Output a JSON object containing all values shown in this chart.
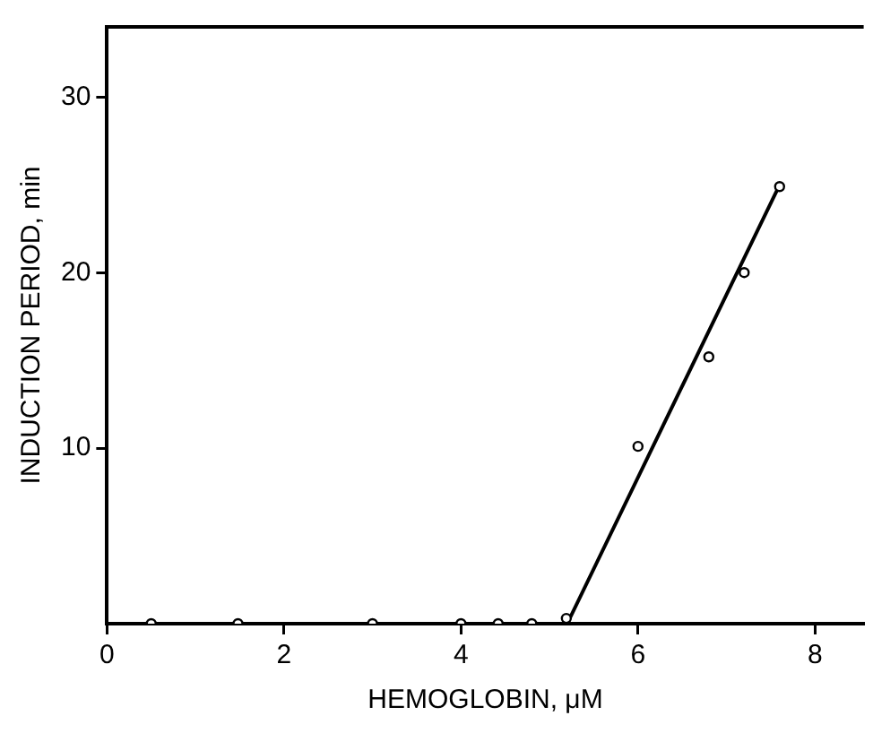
{
  "chart_data": {
    "type": "scatter",
    "xlabel": "HEMOGLOBIN, μM",
    "ylabel": "INDUCTION PERIOD, min",
    "series": [
      {
        "color": "#000000",
        "x": [
          0.5,
          1.48,
          3.0,
          4.0,
          4.42,
          4.8,
          5.19,
          6.0,
          6.8,
          7.2,
          7.6
        ],
        "values": [
          0,
          0,
          0,
          0,
          0,
          0,
          0.3,
          10.1,
          15.2,
          20,
          24.9
        ]
      },
      {
        "type": "line",
        "color": "#000000",
        "x": [
          0.5,
          5.2,
          7.6
        ],
        "values": [
          0,
          0,
          25
        ],
        "marker": "none"
      }
    ],
    "xlim": [
      0,
      8.55
    ],
    "xticks": [
      0,
      2,
      4,
      6,
      8
    ],
    "ylim": [
      0,
      34
    ],
    "yticks": [
      10,
      20,
      30
    ],
    "grid": false,
    "legend": false,
    "marker": "circle"
  }
}
